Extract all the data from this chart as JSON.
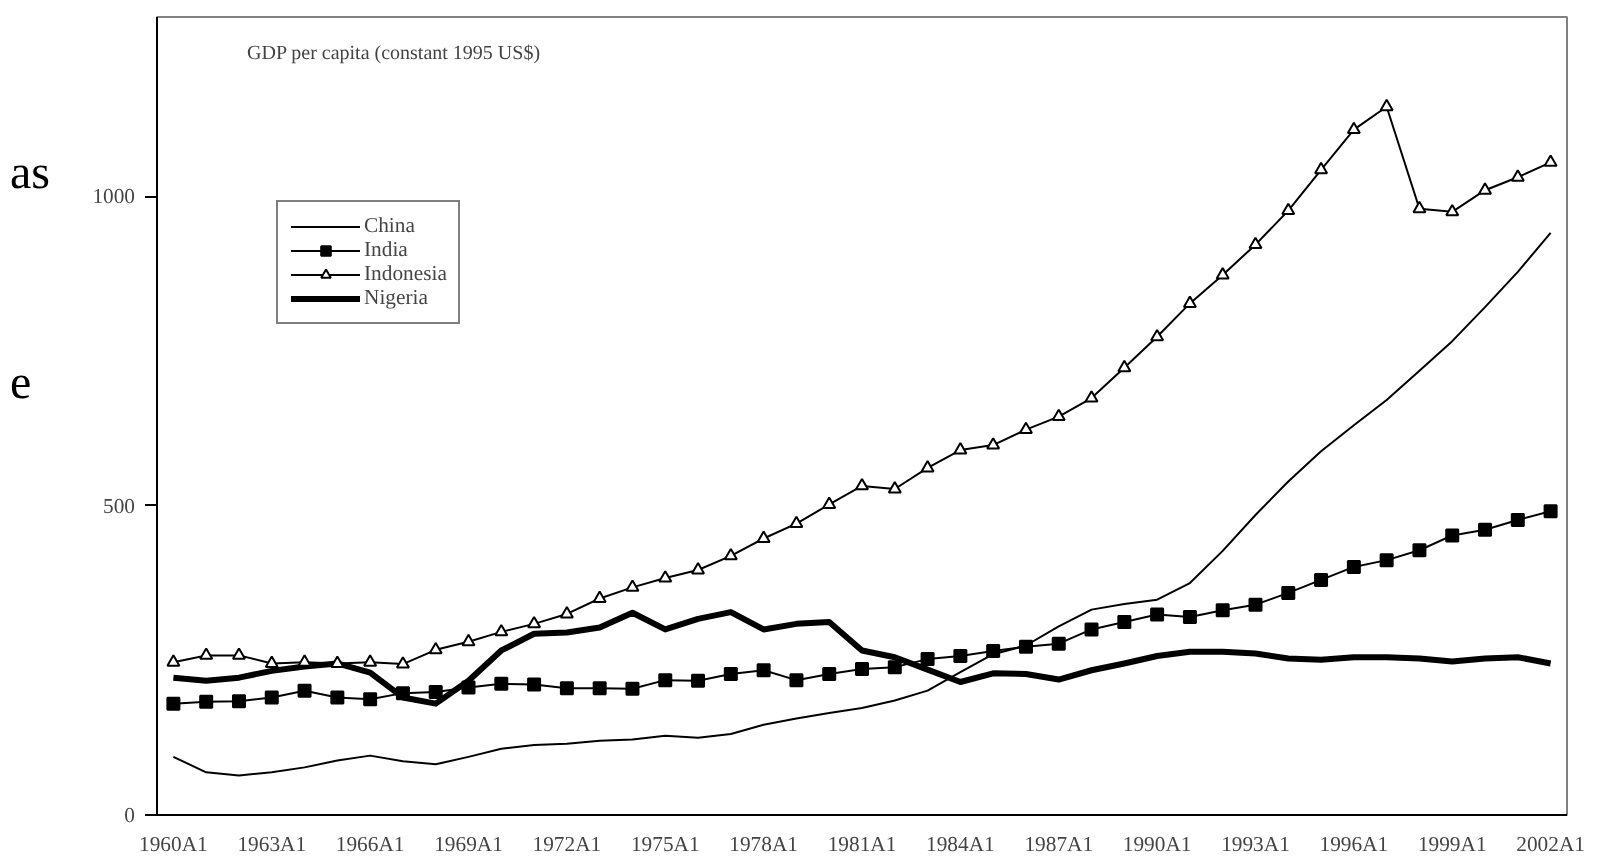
{
  "chart_data": {
    "type": "line",
    "title": "GDP per capita (constant 1995 US$)",
    "categories": [
      "1960A1",
      null,
      null,
      "1963A1",
      null,
      null,
      "1966A1",
      null,
      null,
      "1969A1",
      null,
      null,
      "1972A1",
      null,
      null,
      "1975A1",
      null,
      null,
      "1978A1",
      null,
      null,
      "1981A1",
      null,
      null,
      "1984A1",
      null,
      null,
      "1987A1",
      null,
      null,
      "1990A1",
      null,
      null,
      "1993A1",
      null,
      null,
      "1996A1",
      null,
      null,
      "1999A1",
      null,
      null,
      "2002A1"
    ],
    "series": [
      {
        "name": "China",
        "color": "#000000",
        "marker": "none",
        "values": [
          94,
          69,
          64,
          69,
          77,
          88,
          96,
          87,
          82,
          94,
          107,
          113,
          115,
          120,
          122,
          128,
          125,
          131,
          146,
          156,
          165,
          173,
          185,
          201,
          231,
          260,
          274,
          305,
          332,
          341,
          348,
          375,
          427,
          485,
          539,
          588,
          630,
          671,
          718,
          766,
          821,
          878,
          941
        ]
      },
      {
        "name": "India",
        "color": "#000000",
        "marker": "square",
        "values": [
          180,
          183,
          184,
          190,
          201,
          190,
          187,
          197,
          199,
          206,
          212,
          211,
          205,
          205,
          204,
          218,
          217,
          228,
          234,
          218,
          228,
          236,
          239,
          252,
          257,
          265,
          272,
          277,
          300,
          312,
          324,
          320,
          331,
          340,
          359,
          380,
          401,
          412,
          428,
          452,
          461,
          477,
          491
        ]
      },
      {
        "name": "Indonesia",
        "color": "#000000",
        "marker": "triangle",
        "values": [
          247,
          258,
          258,
          245,
          247,
          245,
          247,
          244,
          267,
          280,
          296,
          309,
          325,
          350,
          368,
          383,
          396,
          419,
          447,
          471,
          502,
          532,
          527,
          561,
          590,
          598,
          623,
          644,
          674,
          723,
          773,
          827,
          873,
          922,
          977,
          1043,
          1108,
          1145,
          980,
          975,
          1010,
          1031,
          1055
        ]
      },
      {
        "name": "Nigeria",
        "color": "#000000",
        "marker": "none",
        "values": [
          222,
          217,
          222,
          233,
          240,
          245,
          230,
          190,
          180,
          217,
          266,
          293,
          295,
          303,
          327,
          300,
          317,
          328,
          300,
          309,
          312,
          266,
          255,
          235,
          215,
          229,
          228,
          219,
          234,
          245,
          257,
          264,
          264,
          261,
          253,
          251,
          255,
          255,
          253,
          248,
          253,
          255,
          245
        ]
      }
    ],
    "ylim": [
      0,
      1290
    ],
    "yticks": [
      0,
      500,
      1000
    ],
    "legend": "top left",
    "grid": false,
    "line_style": "solid",
    "annotations": [
      "as",
      "e"
    ]
  }
}
